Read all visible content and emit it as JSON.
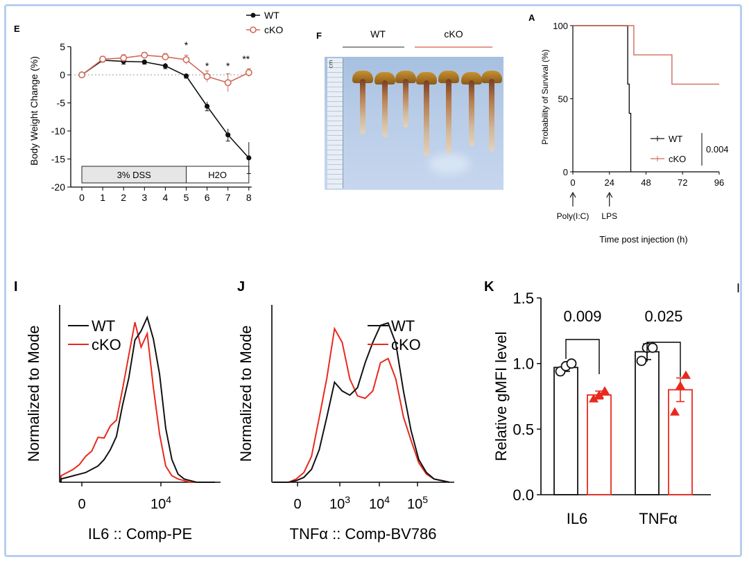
{
  "colors": {
    "wt": "#111111",
    "cko": "#e8291c",
    "cko_light": "#cf6a5a",
    "frame": "#b9cdf2"
  },
  "panels": {
    "E": {
      "letter": "E"
    },
    "F": {
      "letter": "F",
      "wt_label": "WT",
      "cko_label": "cKO",
      "photo_icon": "ruler-icon",
      "ruler_tag": "cm"
    },
    "A": {
      "letter": "A",
      "arrow1": "Poly(I:C)",
      "arrow2": "LPS"
    },
    "I": {
      "letter": "I"
    },
    "J": {
      "letter": "J"
    },
    "K": {
      "letter": "K",
      "corner": "I"
    }
  },
  "chart_data": [
    {
      "id": "E",
      "type": "line",
      "ylabel": "Body Weight Change (%)",
      "xlabel": "",
      "x": [
        0,
        1,
        2,
        3,
        4,
        5,
        6,
        7,
        8
      ],
      "xticks": [
        "0",
        "1",
        "2",
        "3",
        "4",
        "5",
        "6",
        "7",
        "8"
      ],
      "yticks": [
        "5",
        "0",
        "-5",
        "-10",
        "-15",
        "-20"
      ],
      "ylim": [
        -20,
        5
      ],
      "series": [
        {
          "name": "WT",
          "values": [
            0,
            2.6,
            2.4,
            2.3,
            1.6,
            -0.2,
            -5.6,
            -10.7,
            -14.8
          ],
          "err": [
            0,
            0.3,
            0.5,
            0.4,
            0.5,
            0.4,
            0.8,
            1.1,
            2.8
          ]
        },
        {
          "name": "cKO",
          "values": [
            0,
            2.8,
            3.0,
            3.5,
            3.2,
            2.7,
            -0.3,
            -1.4,
            0.4
          ],
          "err": [
            0,
            0.5,
            0.6,
            0.5,
            0.6,
            0.8,
            1.0,
            1.6,
            0.7
          ]
        }
      ],
      "stars": [
        "*",
        "*",
        "*",
        "**"
      ],
      "star_x": [
        5,
        6,
        7,
        8
      ],
      "phase_labels": [
        "3% DSS",
        "H2O"
      ],
      "legend": "top"
    },
    {
      "id": "A",
      "type": "line",
      "ylabel": "Probability of Survival (%)",
      "xlabel": "Time post injection (h)",
      "xticks": [
        "0",
        "24",
        "48",
        "72",
        "96"
      ],
      "yticks": [
        "100",
        "50",
        "0"
      ],
      "xlim": [
        0,
        96
      ],
      "ylim": [
        0,
        100
      ],
      "series": [
        {
          "name": "WT",
          "steps": [
            [
              0,
              100
            ],
            [
              36,
              100
            ],
            [
              36,
              60
            ],
            [
              37,
              60
            ],
            [
              37,
              40
            ],
            [
              38,
              40
            ],
            [
              38,
              0
            ]
          ]
        },
        {
          "name": "cKO",
          "steps": [
            [
              0,
              100
            ],
            [
              40,
              100
            ],
            [
              40,
              80
            ],
            [
              65,
              80
            ],
            [
              65,
              60
            ],
            [
              96,
              60
            ]
          ]
        }
      ],
      "pvalue": "0.004",
      "legend": "bottom-right"
    },
    {
      "id": "I",
      "type": "area",
      "ylabel": "Normalized to Mode",
      "xlabel": "IL6 :: Comp-PE",
      "xticks": [
        "0",
        "10^4"
      ],
      "series": [
        {
          "name": "WT",
          "values": [
            0.02,
            0.03,
            0.04,
            0.05,
            0.06,
            0.08,
            0.1,
            0.14,
            0.2,
            0.3,
            0.46,
            0.66,
            0.86,
            0.95,
            1.0,
            0.9,
            0.65,
            0.35,
            0.14,
            0.05,
            0.02,
            0.01,
            0.0,
            0.0,
            0.0,
            0.0
          ]
        },
        {
          "name": "cKO",
          "values": [
            0.04,
            0.06,
            0.08,
            0.11,
            0.16,
            0.21,
            0.26,
            0.29,
            0.33,
            0.4,
            0.56,
            0.8,
            0.97,
            0.85,
            0.9,
            0.6,
            0.28,
            0.1,
            0.04,
            0.02,
            0.01,
            0.0,
            0.0,
            0.0,
            0.0,
            0.0
          ]
        }
      ],
      "legend": "top-left"
    },
    {
      "id": "J",
      "type": "area",
      "ylabel": "Normalized to Mode",
      "xlabel": "TNFα :: Comp-BV786",
      "xticks": [
        "0",
        "10^3",
        "10^4",
        "10^5"
      ],
      "series": [
        {
          "name": "WT",
          "values": [
            0.0,
            0.0,
            0.0,
            0.01,
            0.03,
            0.08,
            0.2,
            0.42,
            0.6,
            0.58,
            0.52,
            0.6,
            0.72,
            0.88,
            0.95,
            1.0,
            0.84,
            0.58,
            0.3,
            0.14,
            0.06,
            0.02,
            0.01,
            0.0
          ]
        },
        {
          "name": "cKO",
          "values": [
            0.0,
            0.0,
            0.0,
            0.02,
            0.06,
            0.16,
            0.38,
            0.66,
            0.93,
            0.88,
            0.62,
            0.55,
            0.5,
            0.58,
            0.72,
            0.78,
            0.62,
            0.42,
            0.24,
            0.12,
            0.05,
            0.02,
            0.01,
            0.0
          ]
        }
      ],
      "legend": "top-right"
    },
    {
      "id": "K",
      "type": "bar",
      "ylabel": "Relative gMFI level",
      "categories": [
        "IL6",
        "TNFα"
      ],
      "yticks": [
        "1.5",
        "1.0",
        "0.5",
        "0.0"
      ],
      "ylim": [
        0,
        1.5
      ],
      "series": [
        {
          "name": "WT",
          "values": [
            0.97,
            1.09
          ],
          "err": [
            0.03,
            0.06
          ],
          "points": [
            [
              0.94,
              0.98,
              1.0
            ],
            [
              1.02,
              1.12,
              1.12
            ]
          ]
        },
        {
          "name": "cKO",
          "values": [
            0.76,
            0.8
          ],
          "err": [
            0.03,
            0.09
          ],
          "points": [
            [
              0.73,
              0.76,
              0.79
            ],
            [
              0.63,
              0.83,
              0.91
            ]
          ]
        }
      ],
      "pvalues": [
        "0.009",
        "0.025"
      ]
    }
  ]
}
